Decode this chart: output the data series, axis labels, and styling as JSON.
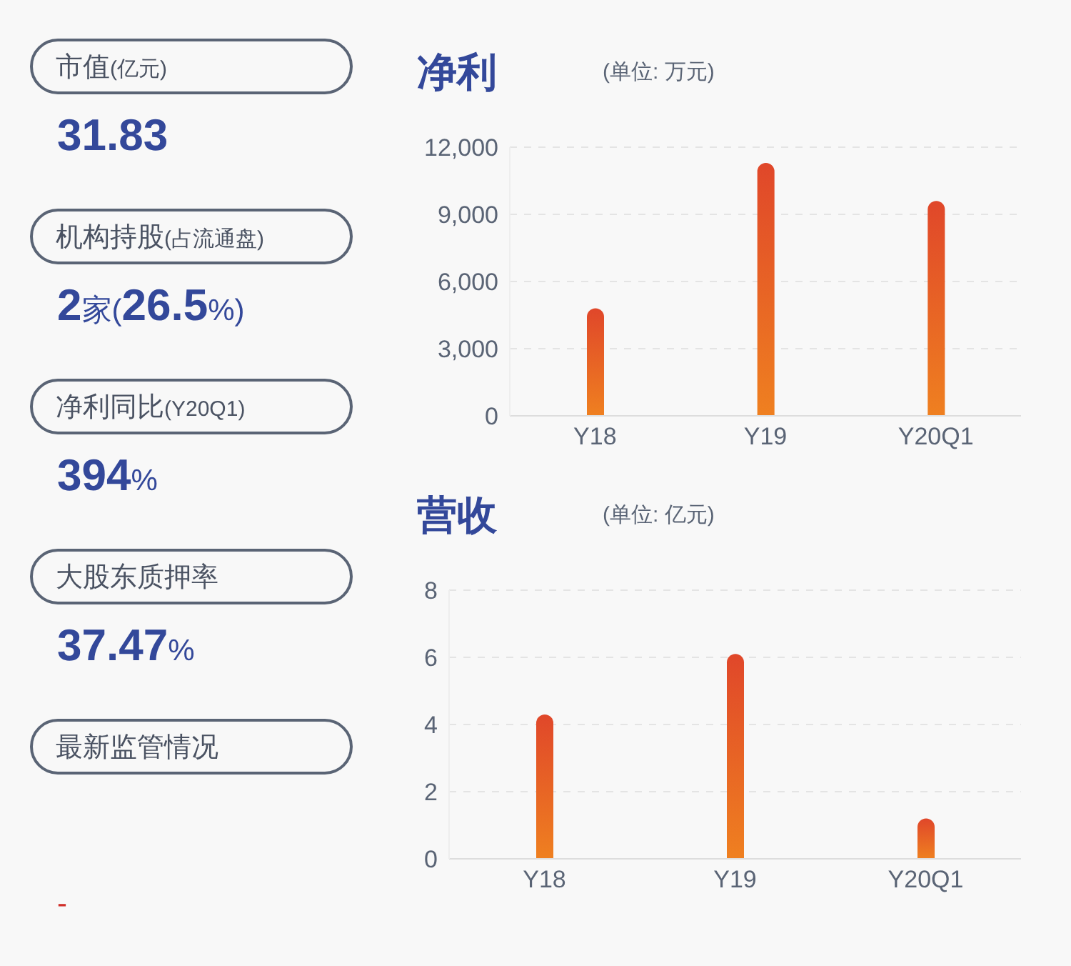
{
  "chart_data": [
    {
      "type": "other",
      "annotations": [
        "市值(亿元)",
        "31.83",
        "机构持股(占流通盘)",
        "2家(26.5%)",
        "净利同比(Y20Q1)",
        "394%",
        "大股东质押率",
        "37.47%",
        "最新监管情况",
        "-"
      ]
    },
    {
      "type": "bar",
      "title": "净利",
      "subtitle": "(单位: 万元)",
      "categories": [
        "Y18",
        "Y19",
        "Y20Q1"
      ],
      "values": [
        4800,
        11300,
        9600
      ],
      "color": "#e0472a",
      "ylim": [
        0,
        12000
      ],
      "yticks": [
        0,
        {
          "value": 3000,
          "label": "3,000"
        },
        {
          "value": 6000,
          "label": "6,000"
        },
        {
          "value": 9000,
          "label": "9,000"
        },
        {
          "value": 12000,
          "label": "12,000"
        }
      ],
      "grid": "y"
    },
    {
      "type": "bar",
      "title": "营收",
      "subtitle": "(单位: 亿元)",
      "categories": [
        "Y18",
        "Y19",
        "Y20Q1"
      ],
      "values": [
        4.3,
        6.1,
        1.2
      ],
      "color": "#e0472a",
      "ylim": [
        0,
        8
      ],
      "yticks": [
        0,
        2,
        4,
        6,
        8
      ],
      "grid": "y"
    }
  ]
}
